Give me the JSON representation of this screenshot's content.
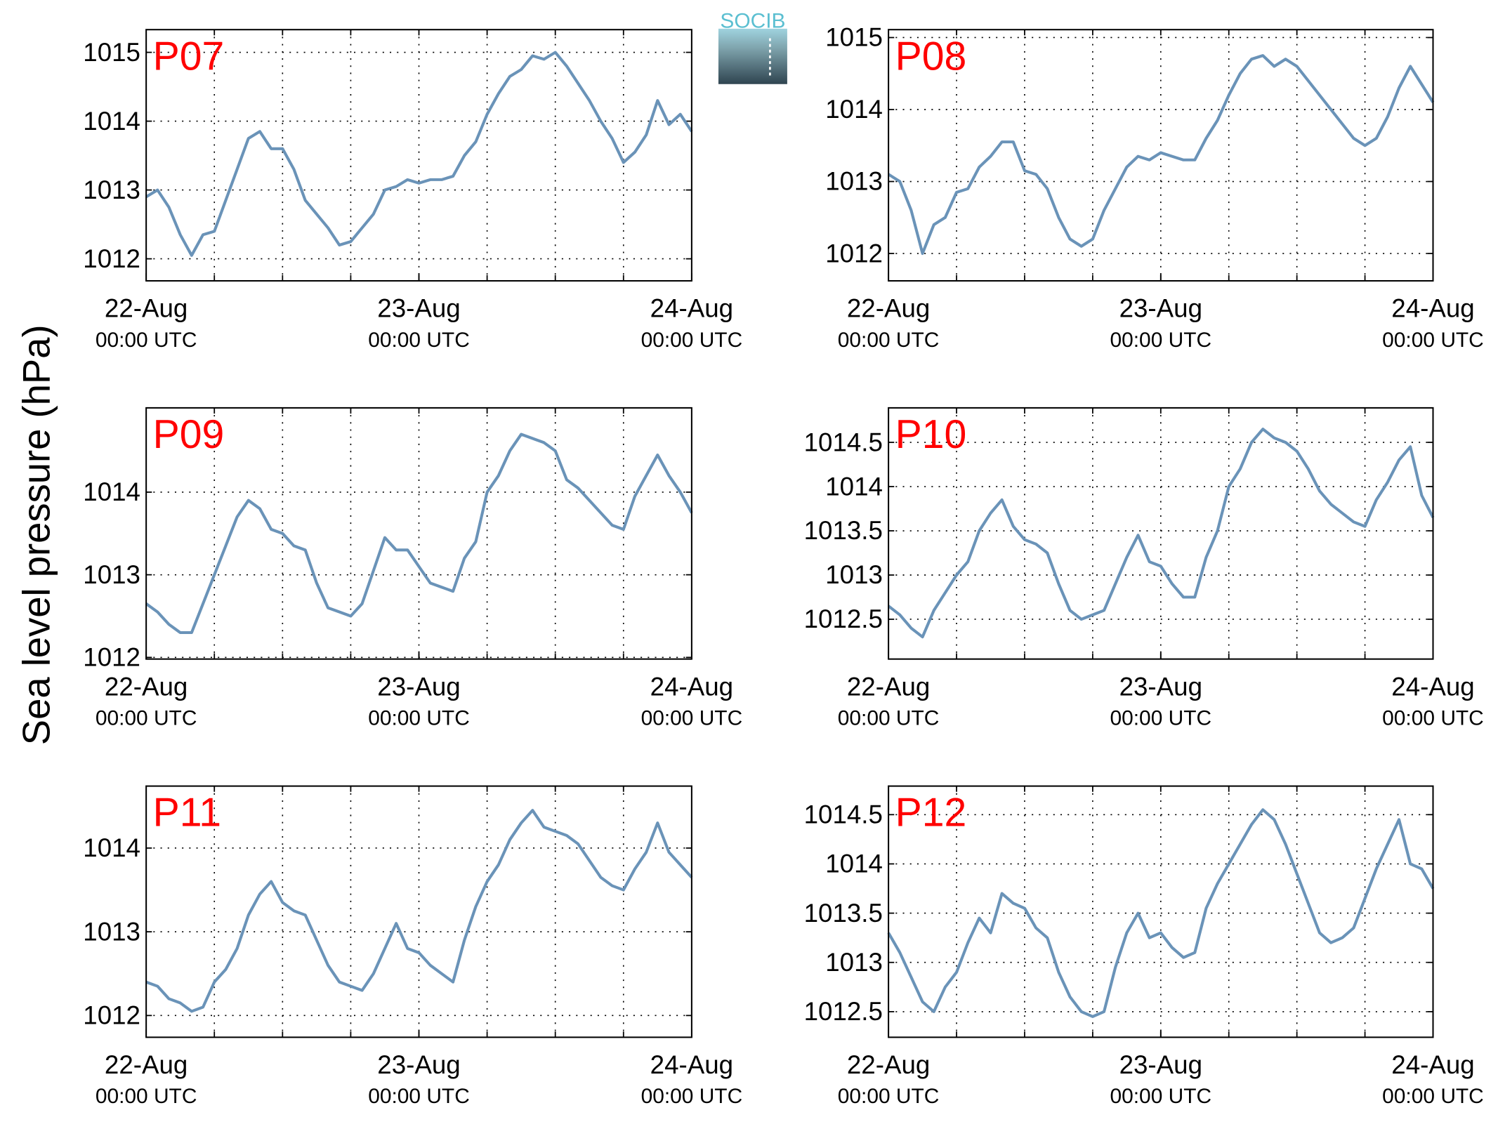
{
  "logo": "SOCIB",
  "ylabel": "Sea level pressure (hPa)",
  "chart_data": [
    {
      "type": "line",
      "title": "P07",
      "color": "#6a93b8",
      "x": [
        0,
        1,
        2,
        3,
        4,
        5,
        6,
        7,
        8,
        9,
        10,
        11,
        12,
        13,
        14,
        15,
        16,
        17,
        18,
        19,
        20,
        21,
        22,
        23,
        24,
        25,
        26,
        27,
        28,
        29,
        30,
        31,
        32,
        33,
        34,
        35,
        36,
        37,
        38,
        39,
        40,
        41,
        42,
        43,
        44,
        45,
        46,
        47,
        48
      ],
      "values": [
        1012.9,
        1013.0,
        1012.75,
        1012.35,
        1012.05,
        1012.35,
        1012.4,
        1012.85,
        1013.3,
        1013.75,
        1013.85,
        1013.6,
        1013.6,
        1013.3,
        1012.85,
        1012.65,
        1012.45,
        1012.2,
        1012.25,
        1012.45,
        1012.65,
        1013.0,
        1013.05,
        1013.15,
        1013.1,
        1013.15,
        1013.15,
        1013.2,
        1013.5,
        1013.7,
        1014.1,
        1014.4,
        1014.65,
        1014.75,
        1014.95,
        1014.9,
        1015.0,
        1014.8,
        1014.55,
        1014.3,
        1014.0,
        1013.75,
        1013.4,
        1013.55,
        1013.8,
        1014.3,
        1013.95,
        1014.1,
        1013.85
      ],
      "xlim": [
        0,
        48
      ],
      "xticks": [
        {
          "value": 0,
          "label": "22-Aug",
          "sublabel": "00:00 UTC"
        },
        {
          "value": 24,
          "label": "23-Aug",
          "sublabel": "00:00 UTC"
        },
        {
          "value": 48,
          "label": "24-Aug",
          "sublabel": "00:00 UTC"
        }
      ],
      "xgrid": [
        6,
        12,
        18,
        24,
        30,
        36,
        42
      ],
      "ylim": [
        1011.68,
        1015.33
      ],
      "yticks": [
        1012,
        1013,
        1014,
        1015
      ],
      "grid": true
    },
    {
      "type": "line",
      "title": "P08",
      "color": "#6a93b8",
      "x": [
        0,
        1,
        2,
        3,
        4,
        5,
        6,
        7,
        8,
        9,
        10,
        11,
        12,
        13,
        14,
        15,
        16,
        17,
        18,
        19,
        20,
        21,
        22,
        23,
        24,
        25,
        26,
        27,
        28,
        29,
        30,
        31,
        32,
        33,
        34,
        35,
        36,
        37,
        38,
        39,
        40,
        41,
        42,
        43,
        44,
        45,
        46,
        47,
        48
      ],
      "values": [
        1013.1,
        1013.0,
        1012.6,
        1012.0,
        1012.4,
        1012.5,
        1012.85,
        1012.9,
        1013.2,
        1013.35,
        1013.55,
        1013.55,
        1013.15,
        1013.1,
        1012.9,
        1012.5,
        1012.2,
        1012.1,
        1012.2,
        1012.6,
        1012.9,
        1013.2,
        1013.35,
        1013.3,
        1013.4,
        1013.35,
        1013.3,
        1013.3,
        1013.6,
        1013.85,
        1014.2,
        1014.5,
        1014.7,
        1014.75,
        1014.6,
        1014.7,
        1014.6,
        1014.4,
        1014.2,
        1014.0,
        1013.8,
        1013.6,
        1013.5,
        1013.6,
        1013.9,
        1014.3,
        1014.6,
        1014.35,
        1014.1
      ],
      "xlim": [
        0,
        48
      ],
      "xticks": [
        {
          "value": 0,
          "label": "22-Aug",
          "sublabel": "00:00 UTC"
        },
        {
          "value": 24,
          "label": "23-Aug",
          "sublabel": "00:00 UTC"
        },
        {
          "value": 48,
          "label": "24-Aug",
          "sublabel": "00:00 UTC"
        }
      ],
      "xgrid": [
        6,
        12,
        18,
        24,
        30,
        36,
        42
      ],
      "ylim": [
        1011.62,
        1015.11
      ],
      "yticks": [
        1012,
        1013,
        1014,
        1015
      ],
      "grid": true
    },
    {
      "type": "line",
      "title": "P09",
      "color": "#6a93b8",
      "x": [
        0,
        1,
        2,
        3,
        4,
        5,
        6,
        7,
        8,
        9,
        10,
        11,
        12,
        13,
        14,
        15,
        16,
        17,
        18,
        19,
        20,
        21,
        22,
        23,
        24,
        25,
        26,
        27,
        28,
        29,
        30,
        31,
        32,
        33,
        34,
        35,
        36,
        37,
        38,
        39,
        40,
        41,
        42,
        43,
        44,
        45,
        46,
        47,
        48
      ],
      "values": [
        1012.65,
        1012.55,
        1012.4,
        1012.3,
        1012.3,
        1012.65,
        1013.0,
        1013.35,
        1013.7,
        1013.9,
        1013.8,
        1013.55,
        1013.5,
        1013.35,
        1013.3,
        1012.9,
        1012.6,
        1012.55,
        1012.5,
        1012.65,
        1013.05,
        1013.45,
        1013.3,
        1013.3,
        1013.1,
        1012.9,
        1012.85,
        1012.8,
        1013.2,
        1013.4,
        1014.0,
        1014.2,
        1014.5,
        1014.7,
        1014.65,
        1014.6,
        1014.5,
        1014.15,
        1014.05,
        1013.9,
        1013.75,
        1013.6,
        1013.55,
        1013.95,
        1014.2,
        1014.45,
        1014.2,
        1014.0,
        1013.75
      ],
      "xlim": [
        0,
        48
      ],
      "xticks": [
        {
          "value": 0,
          "label": "22-Aug",
          "sublabel": "00:00 UTC"
        },
        {
          "value": 24,
          "label": "23-Aug",
          "sublabel": "00:00 UTC"
        },
        {
          "value": 48,
          "label": "24-Aug",
          "sublabel": "00:00 UTC"
        }
      ],
      "xgrid": [
        6,
        12,
        18,
        24,
        30,
        36,
        42
      ],
      "ylim": [
        1011.98,
        1015.02
      ],
      "yticks": [
        1012,
        1013,
        1014
      ],
      "grid": true
    },
    {
      "type": "line",
      "title": "P10",
      "color": "#6a93b8",
      "x": [
        0,
        1,
        2,
        3,
        4,
        5,
        6,
        7,
        8,
        9,
        10,
        11,
        12,
        13,
        14,
        15,
        16,
        17,
        18,
        19,
        20,
        21,
        22,
        23,
        24,
        25,
        26,
        27,
        28,
        29,
        30,
        31,
        32,
        33,
        34,
        35,
        36,
        37,
        38,
        39,
        40,
        41,
        42,
        43,
        44,
        45,
        46,
        47,
        48
      ],
      "values": [
        1012.65,
        1012.55,
        1012.4,
        1012.3,
        1012.6,
        1012.8,
        1013.0,
        1013.15,
        1013.5,
        1013.7,
        1013.85,
        1013.55,
        1013.4,
        1013.35,
        1013.25,
        1012.9,
        1012.6,
        1012.5,
        1012.55,
        1012.6,
        1012.9,
        1013.2,
        1013.45,
        1013.15,
        1013.1,
        1012.9,
        1012.75,
        1012.75,
        1013.2,
        1013.5,
        1014.0,
        1014.2,
        1014.5,
        1014.65,
        1014.55,
        1014.5,
        1014.4,
        1014.2,
        1013.95,
        1013.8,
        1013.7,
        1013.6,
        1013.55,
        1013.85,
        1014.05,
        1014.3,
        1014.45,
        1013.9,
        1013.65
      ],
      "xlim": [
        0,
        48
      ],
      "xticks": [
        {
          "value": 0,
          "label": "22-Aug",
          "sublabel": "00:00 UTC"
        },
        {
          "value": 24,
          "label": "23-Aug",
          "sublabel": "00:00 UTC"
        },
        {
          "value": 48,
          "label": "24-Aug",
          "sublabel": "00:00 UTC"
        }
      ],
      "xgrid": [
        6,
        12,
        18,
        24,
        30,
        36,
        42
      ],
      "ylim": [
        1012.05,
        1014.89
      ],
      "yticks": [
        1012.5,
        1013,
        1013.5,
        1014,
        1014.5
      ],
      "grid": true
    },
    {
      "type": "line",
      "title": "P11",
      "color": "#6a93b8",
      "x": [
        0,
        1,
        2,
        3,
        4,
        5,
        6,
        7,
        8,
        9,
        10,
        11,
        12,
        13,
        14,
        15,
        16,
        17,
        18,
        19,
        20,
        21,
        22,
        23,
        24,
        25,
        26,
        27,
        28,
        29,
        30,
        31,
        32,
        33,
        34,
        35,
        36,
        37,
        38,
        39,
        40,
        41,
        42,
        43,
        44,
        45,
        46,
        47,
        48
      ],
      "values": [
        1012.4,
        1012.35,
        1012.2,
        1012.15,
        1012.05,
        1012.1,
        1012.4,
        1012.55,
        1012.8,
        1013.2,
        1013.45,
        1013.6,
        1013.35,
        1013.25,
        1013.2,
        1012.9,
        1012.6,
        1012.4,
        1012.35,
        1012.3,
        1012.5,
        1012.8,
        1013.1,
        1012.8,
        1012.75,
        1012.6,
        1012.5,
        1012.4,
        1012.9,
        1013.3,
        1013.6,
        1013.8,
        1014.1,
        1014.3,
        1014.45,
        1014.25,
        1014.2,
        1014.15,
        1014.05,
        1013.85,
        1013.65,
        1013.55,
        1013.5,
        1013.75,
        1013.95,
        1014.3,
        1013.95,
        1013.8,
        1013.65
      ],
      "xlim": [
        0,
        48
      ],
      "xticks": [
        {
          "value": 0,
          "label": "22-Aug",
          "sublabel": "00:00 UTC"
        },
        {
          "value": 24,
          "label": "23-Aug",
          "sublabel": "00:00 UTC"
        },
        {
          "value": 48,
          "label": "24-Aug",
          "sublabel": "00:00 UTC"
        }
      ],
      "xgrid": [
        6,
        12,
        18,
        24,
        30,
        36,
        42
      ],
      "ylim": [
        1011.74,
        1014.74
      ],
      "yticks": [
        1012,
        1013,
        1014
      ],
      "grid": true
    },
    {
      "type": "line",
      "title": "P12",
      "color": "#6a93b8",
      "x": [
        0,
        1,
        2,
        3,
        4,
        5,
        6,
        7,
        8,
        9,
        10,
        11,
        12,
        13,
        14,
        15,
        16,
        17,
        18,
        19,
        20,
        21,
        22,
        23,
        24,
        25,
        26,
        27,
        28,
        29,
        30,
        31,
        32,
        33,
        34,
        35,
        36,
        37,
        38,
        39,
        40,
        41,
        42,
        43,
        44,
        45,
        46,
        47,
        48
      ],
      "values": [
        1013.3,
        1013.1,
        1012.85,
        1012.6,
        1012.5,
        1012.75,
        1012.9,
        1013.2,
        1013.45,
        1013.3,
        1013.7,
        1013.6,
        1013.55,
        1013.35,
        1013.25,
        1012.9,
        1012.65,
        1012.5,
        1012.45,
        1012.5,
        1012.95,
        1013.3,
        1013.5,
        1013.25,
        1013.3,
        1013.15,
        1013.05,
        1013.1,
        1013.55,
        1013.8,
        1014.0,
        1014.2,
        1014.4,
        1014.55,
        1014.45,
        1014.2,
        1013.9,
        1013.6,
        1013.3,
        1013.2,
        1013.25,
        1013.35,
        1013.65,
        1013.95,
        1014.2,
        1014.45,
        1014.0,
        1013.95,
        1013.75
      ],
      "xlim": [
        0,
        48
      ],
      "xticks": [
        {
          "value": 0,
          "label": "22-Aug",
          "sublabel": "00:00 UTC"
        },
        {
          "value": 24,
          "label": "23-Aug",
          "sublabel": "00:00 UTC"
        },
        {
          "value": 48,
          "label": "24-Aug",
          "sublabel": "00:00 UTC"
        }
      ],
      "xgrid": [
        6,
        12,
        18,
        24,
        30,
        36,
        42
      ],
      "ylim": [
        1012.24,
        1014.79
      ],
      "yticks": [
        1012.5,
        1013,
        1013.5,
        1014,
        1014.5
      ],
      "grid": true
    }
  ]
}
